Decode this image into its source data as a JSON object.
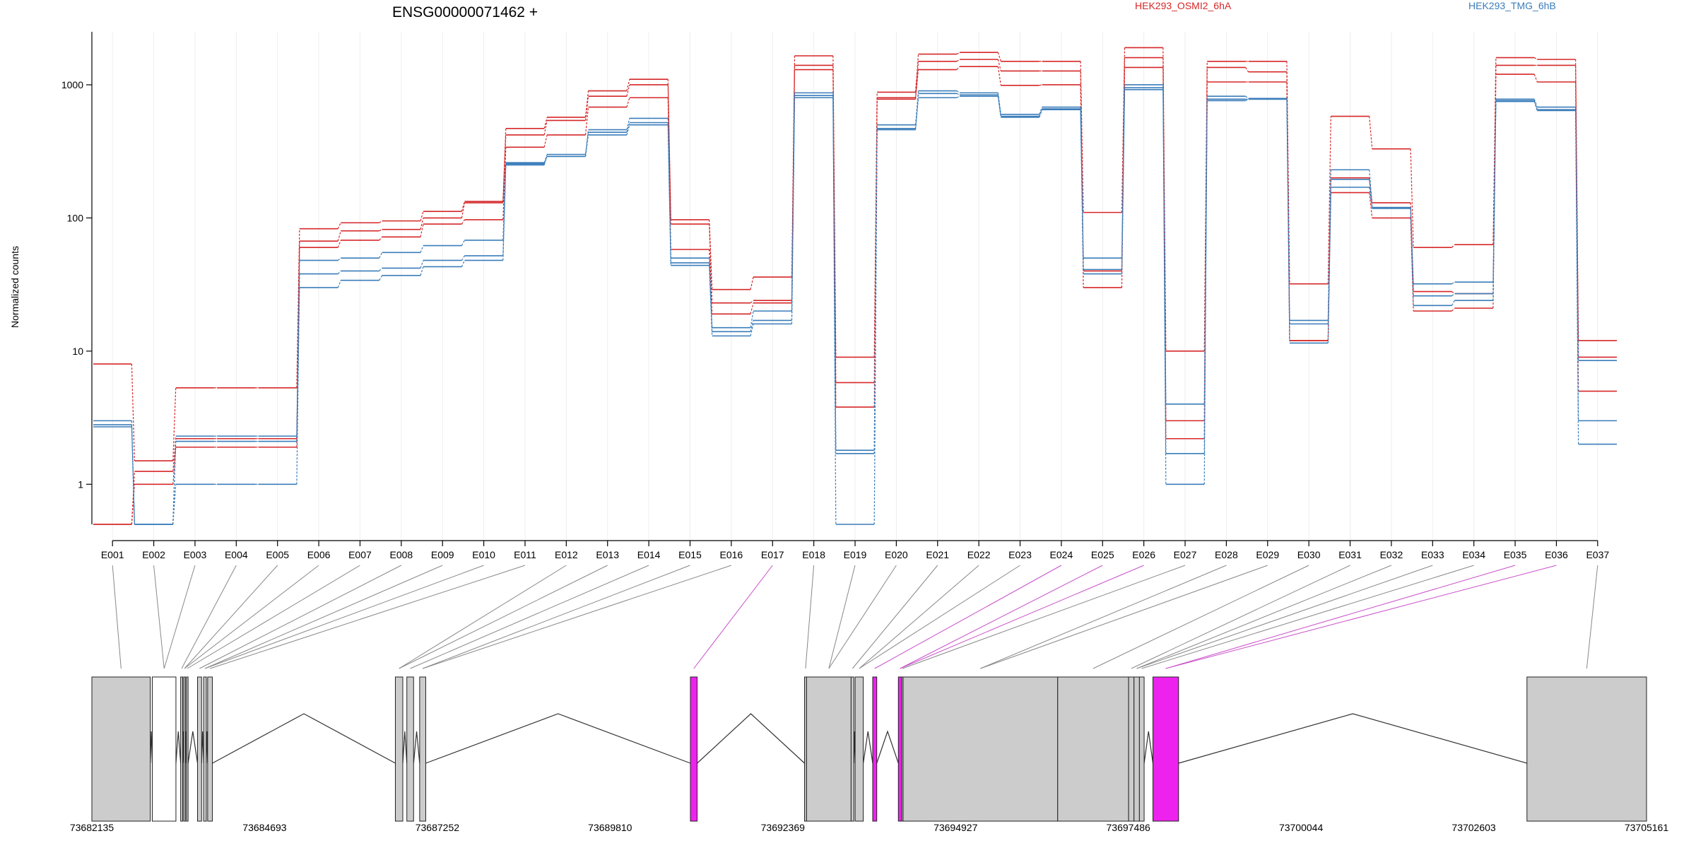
{
  "chart_data": {
    "type": "line",
    "title": "ENSG00000071462 +",
    "ylabel": "Normalized counts",
    "yscale": "log",
    "ylim": [
      0.5,
      2500
    ],
    "yticks": [
      1,
      10,
      100,
      1000
    ],
    "ytick_labels": [
      "1",
      "10",
      "100",
      "1000"
    ],
    "legend": [
      {
        "name": "HEK293_OSMI2_6hA",
        "color": "#d62728"
      },
      {
        "name": "HEK293_TMG_6hB",
        "color": "#3a7dba"
      }
    ],
    "legend_position": "top",
    "grid": "vertical",
    "categories": [
      "E001",
      "E002",
      "E003",
      "E004",
      "E005",
      "E006",
      "E007",
      "E008",
      "E009",
      "E010",
      "E011",
      "E012",
      "E013",
      "E014",
      "E015",
      "E016",
      "E017",
      "E018",
      "E019",
      "E020",
      "E021",
      "E022",
      "E023",
      "E024",
      "E025",
      "E026",
      "E027",
      "E028",
      "E029",
      "E030",
      "E031",
      "E032",
      "E033",
      "E034",
      "E035",
      "E036",
      "E037"
    ],
    "series": [
      {
        "group": "HEK293_OSMI2_6hA",
        "color": "#d62728",
        "values": [
          8,
          1.5,
          5.3,
          5.3,
          5.3,
          83,
          92,
          95,
          112,
          133,
          470,
          570,
          900,
          1100,
          97,
          29,
          36,
          1650,
          9,
          880,
          1700,
          1750,
          1500,
          1500,
          110,
          1900,
          10,
          1500,
          1500,
          32,
          580,
          330,
          60,
          63,
          1600,
          1550,
          12
        ]
      },
      {
        "group": "HEK293_OSMI2_6hA",
        "color": "#d62728",
        "values": [
          0.5,
          1.25,
          2.2,
          2.2,
          2.2,
          67,
          80,
          82,
          100,
          130,
          420,
          540,
          820,
          1000,
          90,
          23,
          24,
          1400,
          5.8,
          800,
          1500,
          1550,
          1270,
          1270,
          40,
          1600,
          3,
          1350,
          1250,
          12,
          200,
          130,
          28,
          27,
          1400,
          1400,
          9
        ]
      },
      {
        "group": "HEK293_OSMI2_6hA",
        "color": "#d62728",
        "values": [
          0.5,
          1.0,
          1.9,
          1.9,
          1.9,
          60,
          68,
          72,
          90,
          97,
          340,
          420,
          680,
          800,
          58,
          19,
          23,
          1300,
          3.8,
          780,
          1300,
          1370,
          990,
          1000,
          30,
          1350,
          2.2,
          1050,
          1050,
          12,
          155,
          100,
          20,
          21,
          1200,
          1050,
          5
        ]
      },
      {
        "group": "HEK293_TMG_6hB",
        "color": "#3a7dba",
        "values": [
          3,
          0.5,
          2.3,
          2.3,
          2.3,
          48,
          50,
          55,
          62,
          68,
          260,
          300,
          460,
          560,
          50,
          15,
          20,
          870,
          1.8,
          500,
          900,
          870,
          600,
          680,
          50,
          1000,
          4,
          820,
          790,
          17,
          230,
          120,
          32,
          33,
          780,
          680,
          3
        ]
      },
      {
        "group": "HEK293_TMG_6hB",
        "color": "#3a7dba",
        "values": [
          2.8,
          0.5,
          1.0,
          1.0,
          1.0,
          38,
          40,
          42,
          48,
          52,
          255,
          290,
          440,
          520,
          46,
          14,
          17,
          830,
          1.7,
          470,
          860,
          840,
          580,
          660,
          41,
          950,
          1.7,
          780,
          780,
          16,
          195,
          118,
          26,
          27,
          760,
          650,
          2
        ]
      },
      {
        "group": "HEK293_TMG_6hB",
        "color": "#3a7dba",
        "values": [
          2.7,
          0.5,
          2.1,
          2.1,
          2.1,
          30,
          34,
          37,
          43,
          48,
          250,
          290,
          420,
          500,
          44,
          13,
          16,
          800,
          0.5,
          460,
          800,
          820,
          570,
          650,
          38,
          920,
          1.0,
          760,
          780,
          11.5,
          170,
          118,
          22,
          24,
          750,
          640,
          8.5
        ]
      }
    ],
    "genome": {
      "start": 73682135,
      "end": 73705161,
      "tick_labels": [
        "73682135",
        "73684693",
        "73687252",
        "73689810",
        "73692369",
        "73694927",
        "73697486",
        "73700044",
        "73702603",
        "73705161"
      ],
      "exons": [
        {
          "start": 73682135,
          "end": 73683000,
          "fill": "#cccccc"
        },
        {
          "start": 73683030,
          "end": 73683380,
          "fill": "#ffffff"
        },
        {
          "start": 73683450,
          "end": 73683480,
          "fill": "#cccccc"
        },
        {
          "start": 73683495,
          "end": 73683520,
          "fill": "#cccccc"
        },
        {
          "start": 73683535,
          "end": 73683560,
          "fill": "#cccccc"
        },
        {
          "start": 73683700,
          "end": 73683760,
          "fill": "#cccccc"
        },
        {
          "start": 73683790,
          "end": 73683830,
          "fill": "#cccccc"
        },
        {
          "start": 73683850,
          "end": 73683920,
          "fill": "#cccccc"
        },
        {
          "start": 73686630,
          "end": 73686740,
          "fill": "#cccccc"
        },
        {
          "start": 73686800,
          "end": 73686900,
          "fill": "#cccccc"
        },
        {
          "start": 73686990,
          "end": 73687080,
          "fill": "#cccccc"
        },
        {
          "start": 73691000,
          "end": 73691100,
          "fill": "#ee22ee"
        },
        {
          "start": 73692690,
          "end": 73692720,
          "fill": "#cccccc"
        },
        {
          "start": 73692720,
          "end": 73693380,
          "fill": "#cccccc"
        },
        {
          "start": 73693380,
          "end": 73693420,
          "fill": "#cccccc"
        },
        {
          "start": 73693440,
          "end": 73693560,
          "fill": "#cccccc"
        },
        {
          "start": 73693700,
          "end": 73693760,
          "fill": "#ee22ee"
        },
        {
          "start": 73694080,
          "end": 73694130,
          "fill": "#ee22ee"
        },
        {
          "start": 73694130,
          "end": 73694150,
          "fill": "#cccccc"
        },
        {
          "start": 73694150,
          "end": 73696440,
          "fill": "#cccccc"
        },
        {
          "start": 73696440,
          "end": 73697490,
          "fill": "#cccccc"
        },
        {
          "start": 73697490,
          "end": 73697570,
          "fill": "#cccccc"
        },
        {
          "start": 73697570,
          "end": 73697650,
          "fill": "#cccccc"
        },
        {
          "start": 73697650,
          "end": 73697720,
          "fill": "#cccccc"
        },
        {
          "start": 73697850,
          "end": 73698230,
          "fill": "#ee22ee"
        },
        {
          "start": 73703390,
          "end": 73705161,
          "fill": "#cccccc"
        }
      ]
    }
  }
}
